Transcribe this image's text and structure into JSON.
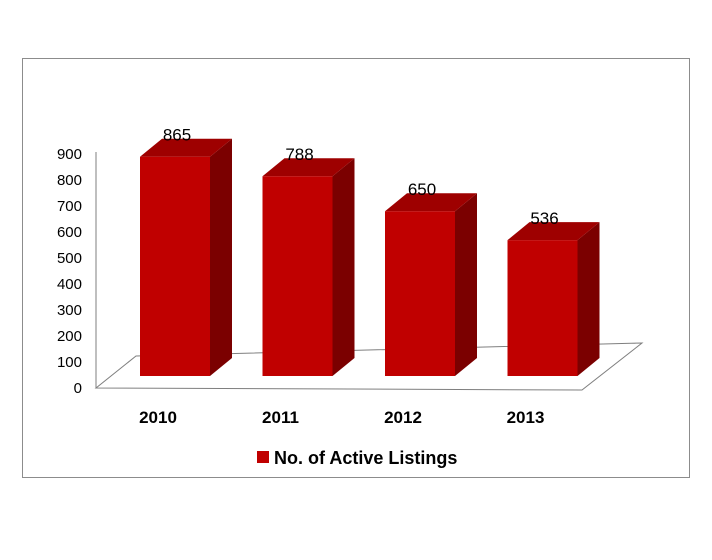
{
  "chart_data": {
    "type": "bar",
    "categories": [
      "2010",
      "2011",
      "2012",
      "2013"
    ],
    "series": [
      {
        "name": "No. of Active Listings",
        "values": [
          865,
          788,
          650,
          536
        ]
      }
    ],
    "ylim": [
      0,
      900
    ],
    "yticks": [
      0,
      100,
      200,
      300,
      400,
      500,
      600,
      700,
      800,
      900
    ],
    "data_labels": [
      "865",
      "788",
      "650",
      "536"
    ],
    "legend_placement": "bottom",
    "grid": false,
    "style": "3d-column",
    "colors": {
      "front": "#c00000",
      "side": "#7b0000",
      "top": "#9e0000"
    }
  }
}
